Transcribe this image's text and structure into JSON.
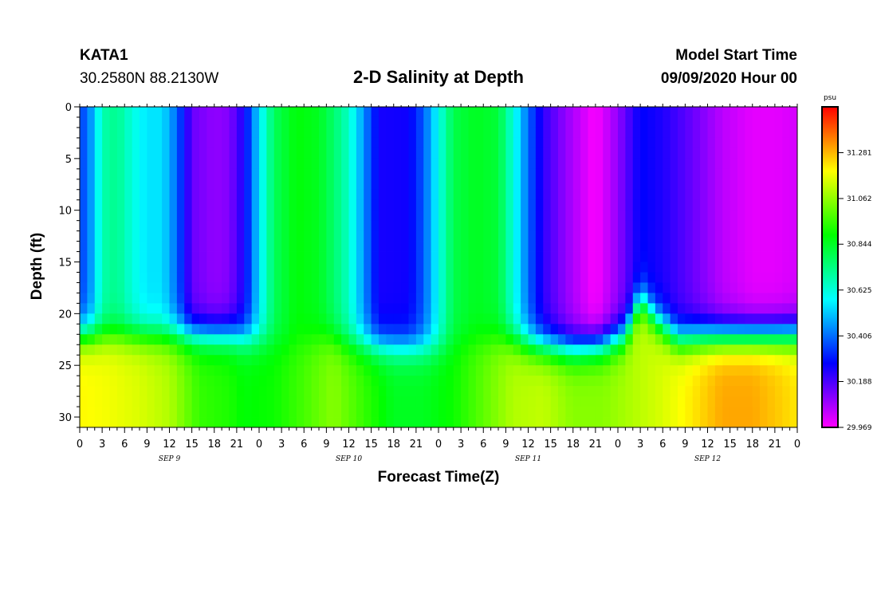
{
  "header": {
    "station": "KATA1",
    "coords": "30.2580N 88.2130W",
    "title": "2-D Salinity at Depth",
    "start_label": "Model Start Time",
    "start_value": "09/09/2020 Hour 00"
  },
  "chart_data": {
    "type": "heatmap",
    "title": "2-D Salinity at Depth",
    "xlabel": "Forecast Time(Z)",
    "ylabel": "Depth (ft)",
    "x_tick_labels": [
      "0",
      "3",
      "6",
      "9",
      "12",
      "15",
      "18",
      "21",
      "0",
      "3",
      "6",
      "9",
      "12",
      "15",
      "18",
      "21",
      "0",
      "3",
      "6",
      "9",
      "12",
      "15",
      "18",
      "21",
      "0",
      "3",
      "6",
      "9",
      "12",
      "15",
      "18",
      "21",
      "0"
    ],
    "x_range_hours": [
      0,
      96
    ],
    "day_labels": [
      {
        "label": "SEP 9",
        "hour": 12
      },
      {
        "label": "SEP 10",
        "hour": 36
      },
      {
        "label": "SEP 11",
        "hour": 60
      },
      {
        "label": "SEP 12",
        "hour": 84
      }
    ],
    "y_ticks": [
      0,
      5,
      10,
      15,
      20,
      25,
      30
    ],
    "y_range": [
      0,
      31
    ],
    "y_inverted": true,
    "colorbar": {
      "unit": "psu",
      "ticks": [
        "31.281",
        "31.062",
        "30.844",
        "30.625",
        "30.406",
        "30.188",
        "29.969"
      ],
      "range": [
        29.969,
        31.5
      ],
      "colors": [
        "#ff00ff",
        "#8000ff",
        "#0000ff",
        "#0080ff",
        "#00ffff",
        "#00ff80",
        "#00ff00",
        "#80ff00",
        "#ffff00",
        "#ff8000",
        "#ff0000"
      ]
    },
    "surface_profile": [
      [
        0,
        30.35
      ],
      [
        1,
        30.4
      ],
      [
        2,
        30.52
      ],
      [
        3,
        30.68
      ],
      [
        5,
        30.72
      ],
      [
        7,
        30.62
      ],
      [
        9,
        30.55
      ],
      [
        11,
        30.55
      ],
      [
        13,
        30.4
      ],
      [
        15,
        30.15
      ],
      [
        18,
        30.1
      ],
      [
        20,
        30.12
      ],
      [
        22,
        30.25
      ],
      [
        24,
        30.55
      ],
      [
        26,
        30.78
      ],
      [
        29,
        30.88
      ],
      [
        32,
        30.85
      ],
      [
        34,
        30.76
      ],
      [
        36,
        30.65
      ],
      [
        38,
        30.45
      ],
      [
        40,
        30.25
      ],
      [
        44,
        30.26
      ],
      [
        46,
        30.38
      ],
      [
        48,
        30.6
      ],
      [
        50,
        30.8
      ],
      [
        53,
        30.85
      ],
      [
        56,
        30.82
      ],
      [
        58,
        30.62
      ],
      [
        60,
        30.4
      ],
      [
        62,
        30.22
      ],
      [
        65,
        30.1
      ],
      [
        69,
        29.97
      ],
      [
        72,
        30.1
      ],
      [
        75,
        30.28
      ],
      [
        78,
        30.24
      ],
      [
        82,
        30.15
      ],
      [
        86,
        30.05
      ],
      [
        90,
        30.0
      ],
      [
        93,
        30.0
      ],
      [
        96,
        30.02
      ]
    ],
    "bottom_profile": [
      [
        0,
        31.2
      ],
      [
        4,
        31.18
      ],
      [
        8,
        31.15
      ],
      [
        12,
        31.1
      ],
      [
        16,
        30.95
      ],
      [
        20,
        30.92
      ],
      [
        22,
        30.88
      ],
      [
        26,
        30.9
      ],
      [
        30,
        30.97
      ],
      [
        34,
        31.05
      ],
      [
        38,
        30.95
      ],
      [
        42,
        30.85
      ],
      [
        46,
        30.85
      ],
      [
        50,
        30.9
      ],
      [
        54,
        31.0
      ],
      [
        58,
        31.1
      ],
      [
        62,
        31.12
      ],
      [
        66,
        31.05
      ],
      [
        70,
        31.05
      ],
      [
        74,
        31.1
      ],
      [
        78,
        31.15
      ],
      [
        82,
        31.22
      ],
      [
        86,
        31.3
      ],
      [
        90,
        31.3
      ],
      [
        94,
        31.25
      ],
      [
        96,
        31.22
      ]
    ],
    "halocline_depth_ft": [
      [
        0,
        22.0
      ],
      [
        20,
        22.0
      ],
      [
        28,
        23.0
      ],
      [
        33,
        22.2
      ],
      [
        36,
        22.8
      ],
      [
        42,
        23.2
      ],
      [
        48,
        23.3
      ],
      [
        52,
        22.6
      ],
      [
        57,
        22.3
      ],
      [
        61,
        23.0
      ],
      [
        66,
        23.4
      ],
      [
        70,
        23.0
      ],
      [
        73,
        22.0
      ],
      [
        75,
        18.5
      ],
      [
        77,
        20.5
      ],
      [
        80,
        22.4
      ],
      [
        84,
        22.2
      ],
      [
        96,
        22.0
      ]
    ]
  }
}
